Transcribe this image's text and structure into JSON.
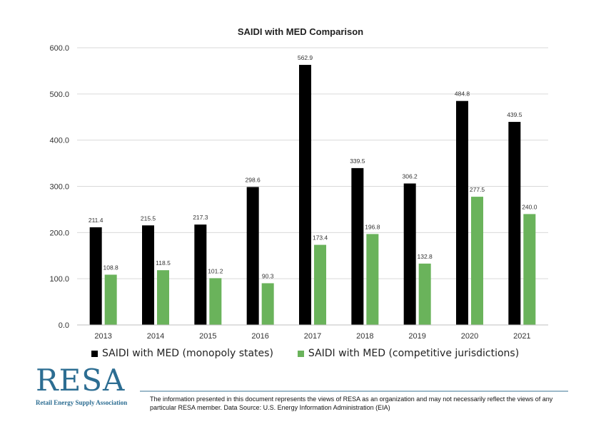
{
  "chart_data": {
    "type": "bar",
    "title": "SAIDI with MED Comparison",
    "categories": [
      "2013",
      "2014",
      "2015",
      "2016",
      "2017",
      "2018",
      "2019",
      "2020",
      "2021"
    ],
    "series": [
      {
        "name": "SAIDI with MED (monopoly states)",
        "color": "#000000",
        "values": [
          211.4,
          215.5,
          217.3,
          298.6,
          562.9,
          339.5,
          306.2,
          484.8,
          439.5
        ],
        "labels": [
          "211.4",
          "215.5",
          "217.3",
          "298.6",
          "562.9",
          "339.5",
          "306.2",
          "484.8",
          "439.5"
        ]
      },
      {
        "name": "SAIDI with MED (competitive jurisdictions)",
        "color": "#6ab35b",
        "values": [
          108.8,
          118.5,
          101.2,
          90.3,
          173.4,
          196.8,
          132.8,
          277.5,
          240.0
        ],
        "labels": [
          "108.8",
          "118.5",
          "101.2",
          "90.3",
          "173.4",
          "196.8",
          "132.8",
          "277.5",
          "240.0"
        ]
      }
    ],
    "yticks": [
      "0.0",
      "100.0",
      "200.0",
      "300.0",
      "400.0",
      "500.0",
      "600.0"
    ],
    "ylim": [
      0,
      600
    ],
    "grid": true,
    "legend": "bottom"
  },
  "footer": {
    "logo_text": "RESA",
    "logo_subtitle": "Retail Energy Supply Association",
    "disclaimer": "The information presented in this document represents the views of RESA as an organization and may not necessarily reflect the views of any particular RESA member. Data Source: U.S. Energy Information Administration (EIA)"
  }
}
